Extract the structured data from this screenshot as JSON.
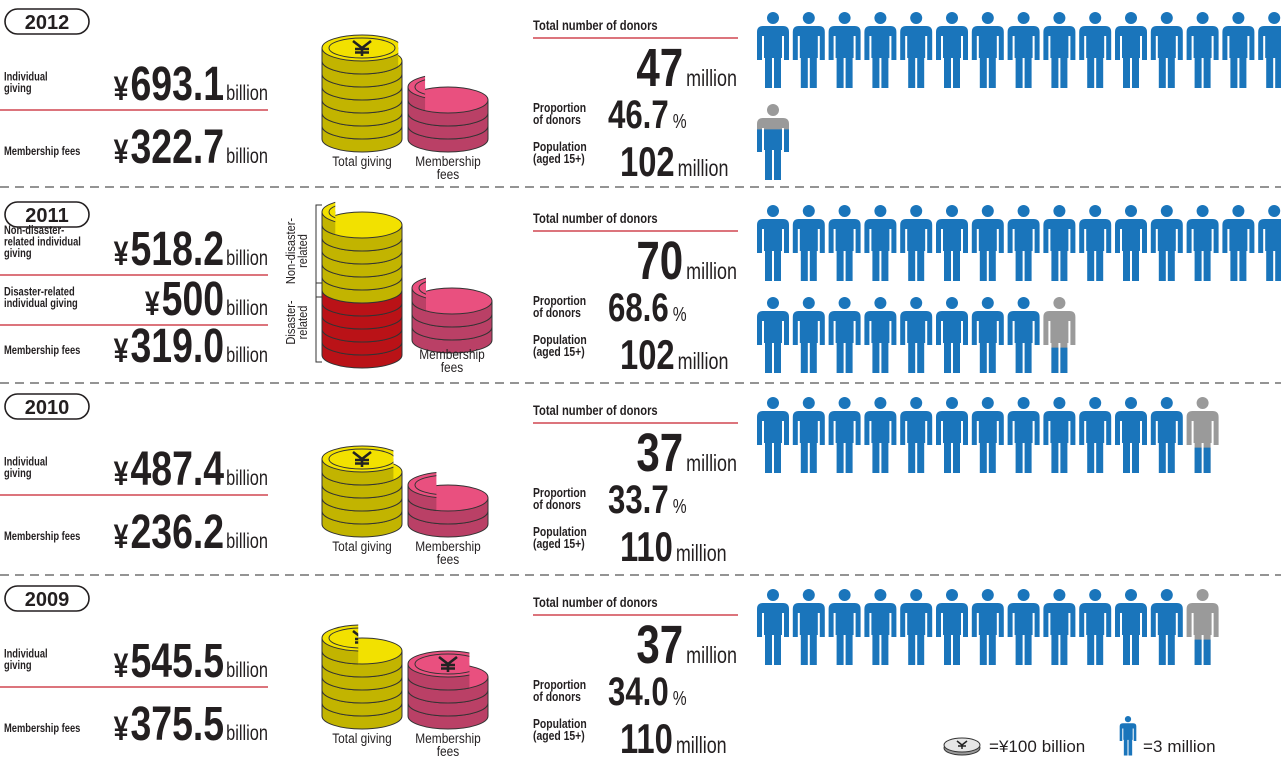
{
  "currency": "¥",
  "years": [
    {
      "year": "2012",
      "giving": [
        {
          "label": [
            "Individual",
            "giving"
          ],
          "value": 693.1,
          "unit": "billion",
          "color": "#f2e100"
        },
        {
          "label": [
            "Membership fees"
          ],
          "value": 322.7,
          "unit": "billion",
          "color": "#e9507f"
        }
      ],
      "coin_labels": [
        [
          "Total giving"
        ],
        [
          "Membership",
          "fees"
        ]
      ],
      "donors": {
        "label": [
          "Total number of donors"
        ],
        "value": 47,
        "unit": "million"
      },
      "proportion": {
        "label": [
          "Proportion",
          "of donors"
        ],
        "value": 46.7,
        "unit": "%"
      },
      "population": {
        "label": [
          "Population",
          "(aged 15+)"
        ],
        "value": 102,
        "unit": "million"
      }
    },
    {
      "year": "2011",
      "giving": [
        {
          "label": [
            "Non-disaster-",
            "related individual",
            "giving"
          ],
          "value": 518.2,
          "unit": "billion",
          "color": "#f2e100"
        },
        {
          "label": [
            "Disaster-related",
            "individual giving"
          ],
          "value": 500,
          "unit": "billion",
          "color": "#e8161d"
        },
        {
          "label": [
            "Membership fees"
          ],
          "value": 319,
          "value_label": "319.0",
          "unit": "billion",
          "color": "#e9507f"
        }
      ],
      "coin_labels": [
        [
          "Membership",
          "fees"
        ]
      ],
      "bracket_labels": [
        [
          "Non-disaster-",
          "related"
        ],
        [
          "Disaster-",
          "related"
        ]
      ],
      "donors": {
        "label": [
          "Total number of donors"
        ],
        "value": 70,
        "unit": "million"
      },
      "proportion": {
        "label": [
          "Proportion",
          "of donors"
        ],
        "value": 68.6,
        "unit": "%"
      },
      "population": {
        "label": [
          "Population",
          "(aged 15+)"
        ],
        "value": 102,
        "unit": "million"
      }
    },
    {
      "year": "2010",
      "giving": [
        {
          "label": [
            "Individual",
            "giving"
          ],
          "value": 487.4,
          "unit": "billion",
          "color": "#f2e100"
        },
        {
          "label": [
            "Membership fees"
          ],
          "value": 236.2,
          "unit": "billion",
          "color": "#e9507f"
        }
      ],
      "coin_labels": [
        [
          "Total giving"
        ],
        [
          "Membership",
          "fees"
        ]
      ],
      "donors": {
        "label": [
          "Total number of donors"
        ],
        "value": 37,
        "unit": "million"
      },
      "proportion": {
        "label": [
          "Proportion",
          "of donors"
        ],
        "value": 33.7,
        "unit": "%"
      },
      "population": {
        "label": [
          "Population",
          "(aged 15+)"
        ],
        "value": 110,
        "unit": "million"
      }
    },
    {
      "year": "2009",
      "giving": [
        {
          "label": [
            "Individual",
            "giving"
          ],
          "value": 545.5,
          "unit": "billion",
          "color": "#f2e100"
        },
        {
          "label": [
            "Membership fees"
          ],
          "value": 375.5,
          "unit": "billion",
          "color": "#e9507f"
        }
      ],
      "coin_labels": [
        [
          "Total giving"
        ],
        [
          "Membership",
          "fees"
        ]
      ],
      "donors": {
        "label": [
          "Total number of donors"
        ],
        "value": 37,
        "unit": "million"
      },
      "proportion": {
        "label": [
          "Proportion",
          "of donors"
        ],
        "value": 34,
        "value_label": "34.0",
        "unit": "%"
      },
      "population": {
        "label": [
          "Population",
          "(aged 15+)"
        ],
        "value": 110,
        "unit": "million"
      }
    }
  ],
  "legend": {
    "coin": {
      "equals": "=",
      "value": 100,
      "unit": "billion"
    },
    "person": {
      "equals": "=",
      "value": 3,
      "unit": "million"
    }
  },
  "person_color": "#1a75bb",
  "partial_color": "#9a9a9a"
}
